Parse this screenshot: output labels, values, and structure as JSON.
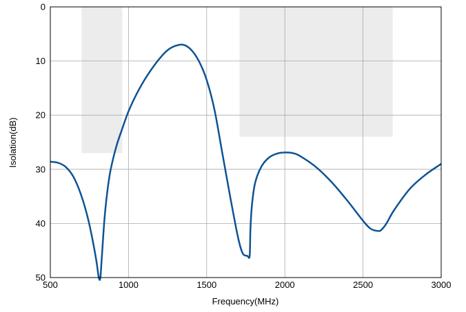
{
  "chart_data": {
    "type": "line",
    "xlabel": "Frequency(MHz)",
    "ylabel": "Isolation(dB)",
    "xlim": [
      500,
      3000
    ],
    "ylim": [
      0,
      50
    ],
    "y_inverted": true,
    "grid": true,
    "xticks": [
      500,
      1000,
      1500,
      2000,
      2500,
      3000
    ],
    "yticks": [
      0,
      10,
      20,
      30,
      40,
      50
    ],
    "colors": {
      "line": "#0d5394",
      "band": "#ececec",
      "grid": "#aaaaaa",
      "frame": "#000000"
    },
    "bands": [
      {
        "x0": 700,
        "x1": 960,
        "y0": 0,
        "y1": 27
      },
      {
        "x0": 1710,
        "x1": 2690,
        "y0": 0,
        "y1": 24
      }
    ],
    "series": [
      {
        "color": "#0d5394",
        "x": [
          500,
          550,
          600,
          650,
          700,
          740,
          770,
          795,
          810,
          820,
          830,
          850,
          880,
          920,
          960,
          1000,
          1050,
          1100,
          1150,
          1200,
          1250,
          1300,
          1350,
          1400,
          1450,
          1500,
          1550,
          1600,
          1650,
          1700,
          1730,
          1760,
          1775,
          1780,
          1790,
          1810,
          1850,
          1900,
          1950,
          2000,
          2050,
          2100,
          2200,
          2300,
          2400,
          2500,
          2550,
          2600,
          2620,
          2650,
          2700,
          2800,
          2900,
          3000
        ],
        "y": [
          28.6,
          28.8,
          29.6,
          31.5,
          35,
          39,
          43,
          47,
          50,
          50,
          46,
          38,
          31,
          26,
          22.5,
          19.3,
          16.2,
          13.6,
          11.4,
          9.5,
          8.0,
          7.2,
          7.0,
          7.9,
          10.0,
          13.5,
          19.0,
          27.0,
          35.0,
          42.5,
          45.5,
          46,
          46,
          41,
          36.5,
          32.5,
          29.5,
          27.8,
          27.1,
          26.9,
          27.0,
          27.6,
          29.6,
          32.4,
          35.8,
          39.5,
          41.0,
          41.4,
          41.1,
          40.0,
          37.5,
          33.6,
          31.0,
          29.0
        ]
      }
    ]
  }
}
